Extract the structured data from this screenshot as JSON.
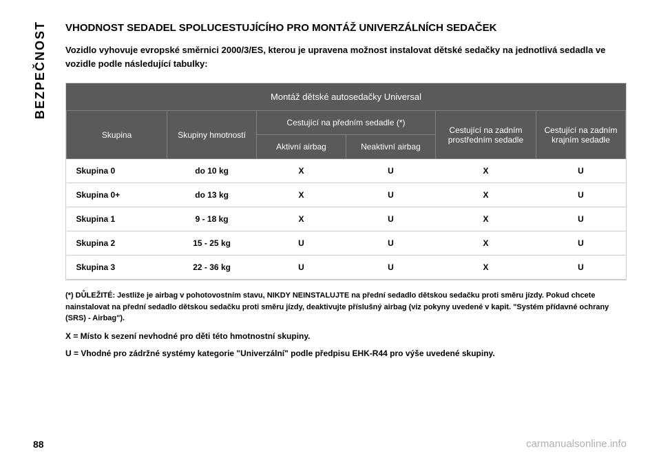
{
  "sidebar": {
    "label": "BEZPEČNOST"
  },
  "title": "VHODNOST SEDADEL SPOLUCESTUJÍCÍHO PRO MONTÁŽ UNIVERZÁLNÍCH SEDAČEK",
  "intro": "Vozidlo vyhovuje evropské směrnici 2000/3/ES, kterou je upravena možnost instalovat dětské sedačky na jednotlivá sedadla ve vozidle podle následující tabulky:",
  "table": {
    "title": "Montáž dětské autosedačky Universal",
    "headers": {
      "skupina": "Skupina",
      "hmotnost": "Skupiny hmotností",
      "predni": "Cestující na předním sedadle (*)",
      "aktivni": "Aktivní airbag",
      "neaktivni": "Neaktivní airbag",
      "prostredni": "Cestující na zadním prostředním sedadle",
      "krajni": "Cestující na zadním krajním sedadle"
    },
    "rows": [
      {
        "skupina": "Skupina 0",
        "hmotnost": "do 10 kg",
        "aktivni": "X",
        "neaktivni": "U",
        "prostredni": "X",
        "krajni": "U"
      },
      {
        "skupina": "Skupina 0+",
        "hmotnost": "do 13 kg",
        "aktivni": "X",
        "neaktivni": "U",
        "prostredni": "X",
        "krajni": "U"
      },
      {
        "skupina": "Skupina 1",
        "hmotnost": "9 - 18 kg",
        "aktivni": "X",
        "neaktivni": "U",
        "prostredni": "X",
        "krajni": "U"
      },
      {
        "skupina": "Skupina 2",
        "hmotnost": "15 - 25 kg",
        "aktivni": "U",
        "neaktivni": "U",
        "prostredni": "X",
        "krajni": "U"
      },
      {
        "skupina": "Skupina 3",
        "hmotnost": "22 - 36 kg",
        "aktivni": "U",
        "neaktivni": "U",
        "prostredni": "X",
        "krajni": "U"
      }
    ]
  },
  "footnote": "(*) DŮLEŽITÉ: Jestliže je airbag v pohotovostním stavu, NIKDY NEINSTALUJTE na přední sedadlo dětskou sedačku proti směru jízdy. Pokud chcete nainstalovat na přední sedadlo dětskou sedačku proti směru jízdy, deaktivujte příslušný airbag (viz pokyny uvedené v kapit. \"Systém přídavné ochrany (SRS) - Airbag\").",
  "legend_x": "X = Místo k sezení nevhodné pro děti této hmotnostní skupiny.",
  "legend_u": "U = Vhodné pro zádržné systémy kategorie \"Univerzální\" podle předpisu EHK-R44 pro výše uvedené skupiny.",
  "page_number": "88",
  "watermark": "carmanualsonline.info",
  "colors": {
    "header_bg": "#5a5a5a",
    "header_text": "#ffffff",
    "border": "#cccccc",
    "text": "#000000",
    "watermark": "#b0b0b0"
  }
}
